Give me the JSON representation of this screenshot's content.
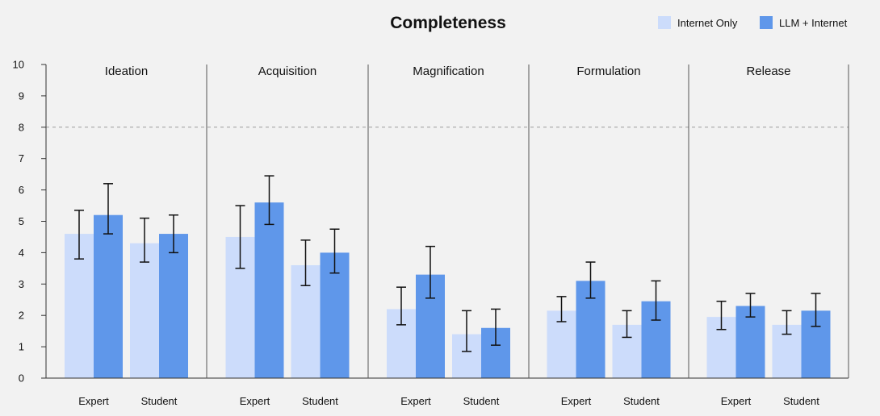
{
  "chart_data": {
    "type": "bar",
    "title": "Completeness",
    "ylim": [
      0,
      10
    ],
    "yticks": [
      "0",
      "1",
      "2",
      "3",
      "4",
      "5",
      "6",
      "7",
      "8",
      "9",
      "10"
    ],
    "reference_line": 8,
    "legend_position": "top-right",
    "series": [
      {
        "name": "Internet Only",
        "color": "#ccdcfb"
      },
      {
        "name": "LLM + Internet",
        "color": "#5f97ea"
      }
    ],
    "panels": [
      {
        "name": "Ideation",
        "groups": [
          {
            "label": "Expert",
            "values": [
              4.6,
              5.2
            ],
            "err_low": [
              3.8,
              4.6
            ],
            "err_high": [
              5.35,
              6.2
            ]
          },
          {
            "label": "Student",
            "values": [
              4.3,
              4.6
            ],
            "err_low": [
              3.7,
              4.0
            ],
            "err_high": [
              5.1,
              5.2
            ]
          }
        ]
      },
      {
        "name": "Acquisition",
        "groups": [
          {
            "label": "Expert",
            "values": [
              4.5,
              5.6
            ],
            "err_low": [
              3.5,
              4.9
            ],
            "err_high": [
              5.5,
              6.45
            ]
          },
          {
            "label": "Student",
            "values": [
              3.6,
              4.0
            ],
            "err_low": [
              2.95,
              3.35
            ],
            "err_high": [
              4.4,
              4.75
            ]
          }
        ]
      },
      {
        "name": "Magnification",
        "groups": [
          {
            "label": "Expert",
            "values": [
              2.2,
              3.3
            ],
            "err_low": [
              1.7,
              2.55
            ],
            "err_high": [
              2.9,
              4.2
            ]
          },
          {
            "label": "Student",
            "values": [
              1.4,
              1.6
            ],
            "err_low": [
              0.85,
              1.05
            ],
            "err_high": [
              2.15,
              2.2
            ]
          }
        ]
      },
      {
        "name": "Formulation",
        "groups": [
          {
            "label": "Expert",
            "values": [
              2.15,
              3.1
            ],
            "err_low": [
              1.8,
              2.55
            ],
            "err_high": [
              2.6,
              3.7
            ]
          },
          {
            "label": "Student",
            "values": [
              1.7,
              2.45
            ],
            "err_low": [
              1.3,
              1.85
            ],
            "err_high": [
              2.15,
              3.1
            ]
          }
        ]
      },
      {
        "name": "Release",
        "groups": [
          {
            "label": "Expert",
            "values": [
              1.95,
              2.3
            ],
            "err_low": [
              1.55,
              1.95
            ],
            "err_high": [
              2.45,
              2.7
            ]
          },
          {
            "label": "Student",
            "values": [
              1.7,
              2.15
            ],
            "err_low": [
              1.4,
              1.65
            ],
            "err_high": [
              2.15,
              2.7
            ]
          }
        ]
      }
    ]
  }
}
